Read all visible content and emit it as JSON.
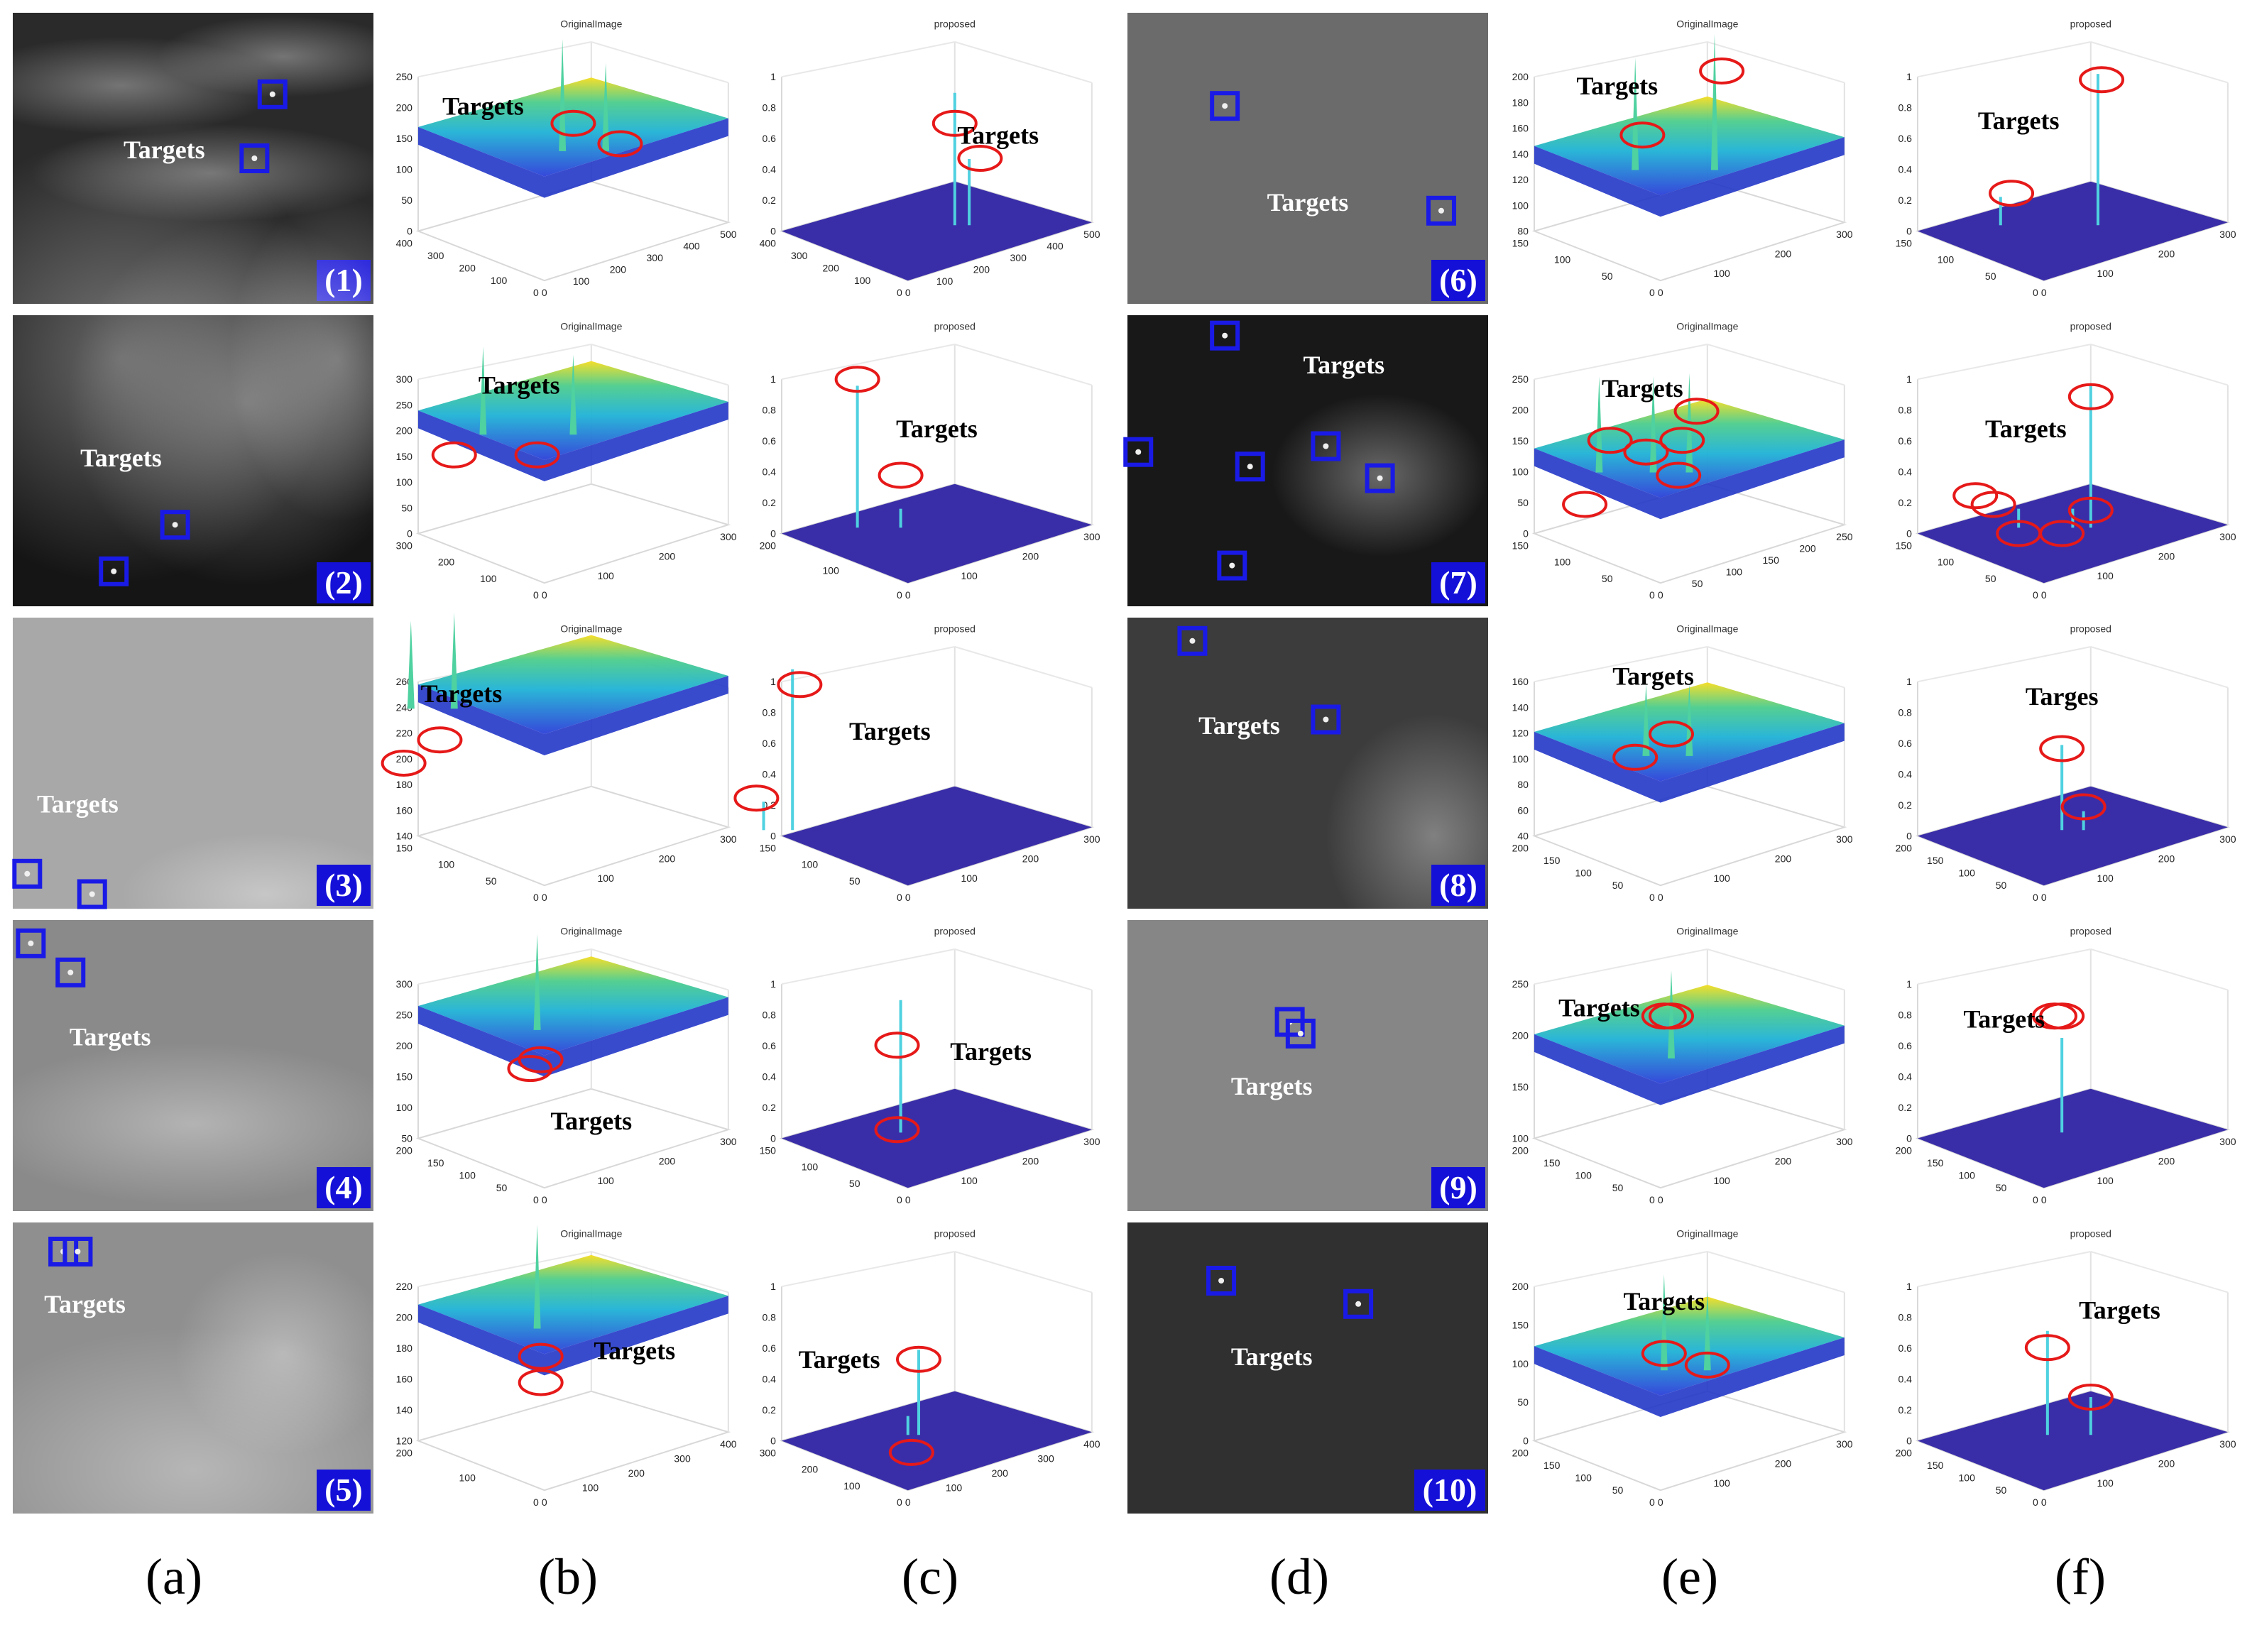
{
  "figure": {
    "rows": [
      {
        "left": {
          "index": "(1)",
          "a_label": "Targets",
          "b_label": "Targets",
          "c_label": "Targets",
          "b_title": "OriginalImage",
          "c_title": "proposed",
          "b_z": [
            "0",
            "50",
            "100",
            "150",
            "200",
            "250"
          ],
          "b_x": [
            "0",
            "100",
            "200",
            "300",
            "400"
          ],
          "b_y": [
            "0",
            "100",
            "200",
            "300",
            "400",
            "500"
          ],
          "c_z": [
            "0",
            "0.2",
            "0.4",
            "0.6",
            "0.8",
            "1"
          ],
          "c_x": [
            "0",
            "100",
            "200",
            "300",
            "400"
          ],
          "c_y": [
            "0",
            "100",
            "200",
            "300",
            "400",
            "500"
          ]
        },
        "right": {
          "index": "(6)",
          "a_label": "Targets",
          "b_label": "Targets",
          "c_label": "Targets",
          "b_title": "OriginalImage",
          "c_title": "proposed",
          "b_z": [
            "80",
            "100",
            "120",
            "140",
            "160",
            "180",
            "200"
          ],
          "b_x": [
            "0",
            "50",
            "100",
            "150"
          ],
          "b_y": [
            "0",
            "100",
            "200",
            "300"
          ],
          "c_z": [
            "0",
            "0.2",
            "0.4",
            "0.6",
            "0.8",
            "1"
          ],
          "c_x": [
            "0",
            "50",
            "100",
            "150"
          ],
          "c_y": [
            "0",
            "100",
            "200",
            "300"
          ]
        }
      },
      {
        "left": {
          "index": "(2)",
          "a_label": "Targets",
          "b_label": "Targets",
          "c_label": "Targets",
          "b_title": "OriginalImage",
          "c_title": "proposed",
          "b_z": [
            "0",
            "50",
            "100",
            "150",
            "200",
            "250",
            "300"
          ],
          "b_x": [
            "0",
            "100",
            "200",
            "300"
          ],
          "b_y": [
            "0",
            "100",
            "200",
            "300"
          ],
          "c_z": [
            "0",
            "0.2",
            "0.4",
            "0.6",
            "0.8",
            "1"
          ],
          "c_x": [
            "0",
            "100",
            "200"
          ],
          "c_y": [
            "0",
            "100",
            "200",
            "300"
          ]
        },
        "right": {
          "index": "(7)",
          "a_label": "Targets",
          "b_label": "Targets",
          "c_label": "Targets",
          "b_title": "OriginalImage",
          "c_title": "proposed",
          "b_z": [
            "0",
            "50",
            "100",
            "150",
            "200",
            "250"
          ],
          "b_x": [
            "0",
            "50",
            "100",
            "150"
          ],
          "b_y": [
            "0",
            "50",
            "100",
            "150",
            "200",
            "250"
          ],
          "c_z": [
            "0",
            "0.2",
            "0.4",
            "0.6",
            "0.8",
            "1"
          ],
          "c_x": [
            "0",
            "50",
            "100",
            "150"
          ],
          "c_y": [
            "0",
            "100",
            "200",
            "300"
          ]
        }
      },
      {
        "left": {
          "index": "(3)",
          "a_label": "Targets",
          "b_label": "Targets",
          "c_label": "Targets",
          "b_title": "OriginalImage",
          "c_title": "proposed",
          "b_z": [
            "140",
            "160",
            "180",
            "200",
            "220",
            "240",
            "260"
          ],
          "b_x": [
            "0",
            "50",
            "100",
            "150"
          ],
          "b_y": [
            "0",
            "100",
            "200",
            "300"
          ],
          "c_z": [
            "0",
            "0.2",
            "0.4",
            "0.6",
            "0.8",
            "1"
          ],
          "c_x": [
            "0",
            "50",
            "100",
            "150"
          ],
          "c_y": [
            "0",
            "100",
            "200",
            "300"
          ]
        },
        "right": {
          "index": "(8)",
          "a_label": "Targets",
          "b_label": "Targets",
          "c_label": "Targes",
          "b_title": "OriginalImage",
          "c_title": "proposed",
          "b_z": [
            "40",
            "60",
            "80",
            "100",
            "120",
            "140",
            "160"
          ],
          "b_x": [
            "0",
            "50",
            "100",
            "150",
            "200"
          ],
          "b_y": [
            "0",
            "100",
            "200",
            "300"
          ],
          "c_z": [
            "0",
            "0.2",
            "0.4",
            "0.6",
            "0.8",
            "1"
          ],
          "c_x": [
            "0",
            "50",
            "100",
            "150",
            "200"
          ],
          "c_y": [
            "0",
            "100",
            "200",
            "300"
          ]
        }
      },
      {
        "left": {
          "index": "(4)",
          "a_label": "Targets",
          "b_label": "Targets",
          "c_label": "Targets",
          "b_title": "OriginalImage",
          "c_title": "proposed",
          "b_z": [
            "50",
            "100",
            "150",
            "200",
            "250",
            "300"
          ],
          "b_x": [
            "0",
            "50",
            "100",
            "150",
            "200"
          ],
          "b_y": [
            "0",
            "100",
            "200",
            "300"
          ],
          "c_z": [
            "0",
            "0.2",
            "0.4",
            "0.6",
            "0.8",
            "1"
          ],
          "c_x": [
            "0",
            "50",
            "100",
            "150"
          ],
          "c_y": [
            "0",
            "100",
            "200",
            "300"
          ]
        },
        "right": {
          "index": "(9)",
          "a_label": "Targets",
          "b_label": "Targets",
          "c_label": "Targets",
          "b_title": "OriginalImage",
          "c_title": "proposed",
          "b_z": [
            "100",
            "150",
            "200",
            "250"
          ],
          "b_x": [
            "0",
            "50",
            "100",
            "150",
            "200"
          ],
          "b_y": [
            "0",
            "100",
            "200",
            "300"
          ],
          "c_z": [
            "0",
            "0.2",
            "0.4",
            "0.6",
            "0.8",
            "1"
          ],
          "c_x": [
            "0",
            "50",
            "100",
            "150",
            "200"
          ],
          "c_y": [
            "0",
            "100",
            "200",
            "300"
          ]
        }
      },
      {
        "left": {
          "index": "(5)",
          "a_label": "Targets",
          "b_label": "Targets",
          "c_label": "Targets",
          "b_title": "OriginalImage",
          "c_title": "proposed",
          "b_z": [
            "120",
            "140",
            "160",
            "180",
            "200",
            "220"
          ],
          "b_x": [
            "0",
            "100",
            "200"
          ],
          "b_y": [
            "0",
            "100",
            "200",
            "300",
            "400"
          ],
          "c_z": [
            "0",
            "0.2",
            "0.4",
            "0.6",
            "0.8",
            "1"
          ],
          "c_x": [
            "0",
            "100",
            "200",
            "300"
          ],
          "c_y": [
            "0",
            "100",
            "200",
            "300",
            "400"
          ]
        },
        "right": {
          "index": "(10)",
          "a_label": "Targets",
          "b_label": "Targets",
          "c_label": "Targets",
          "b_title": "OriginalImage",
          "c_title": "proposed",
          "b_z": [
            "0",
            "50",
            "100",
            "150",
            "200"
          ],
          "b_x": [
            "0",
            "50",
            "100",
            "150",
            "200"
          ],
          "b_y": [
            "0",
            "100",
            "200",
            "300"
          ],
          "c_z": [
            "0",
            "0.2",
            "0.4",
            "0.6",
            "0.8",
            "1"
          ],
          "c_x": [
            "0",
            "50",
            "100",
            "150",
            "200"
          ],
          "c_y": [
            "0",
            "100",
            "200",
            "300"
          ]
        }
      }
    ],
    "column_labels": [
      "(a)",
      "(b)",
      "(c)",
      "(d)",
      "(e)",
      "(f)"
    ]
  },
  "colors": {
    "box": "#1a1ae6",
    "circle": "#e61919",
    "plane": "#3a2ea8",
    "label": "#000000"
  }
}
